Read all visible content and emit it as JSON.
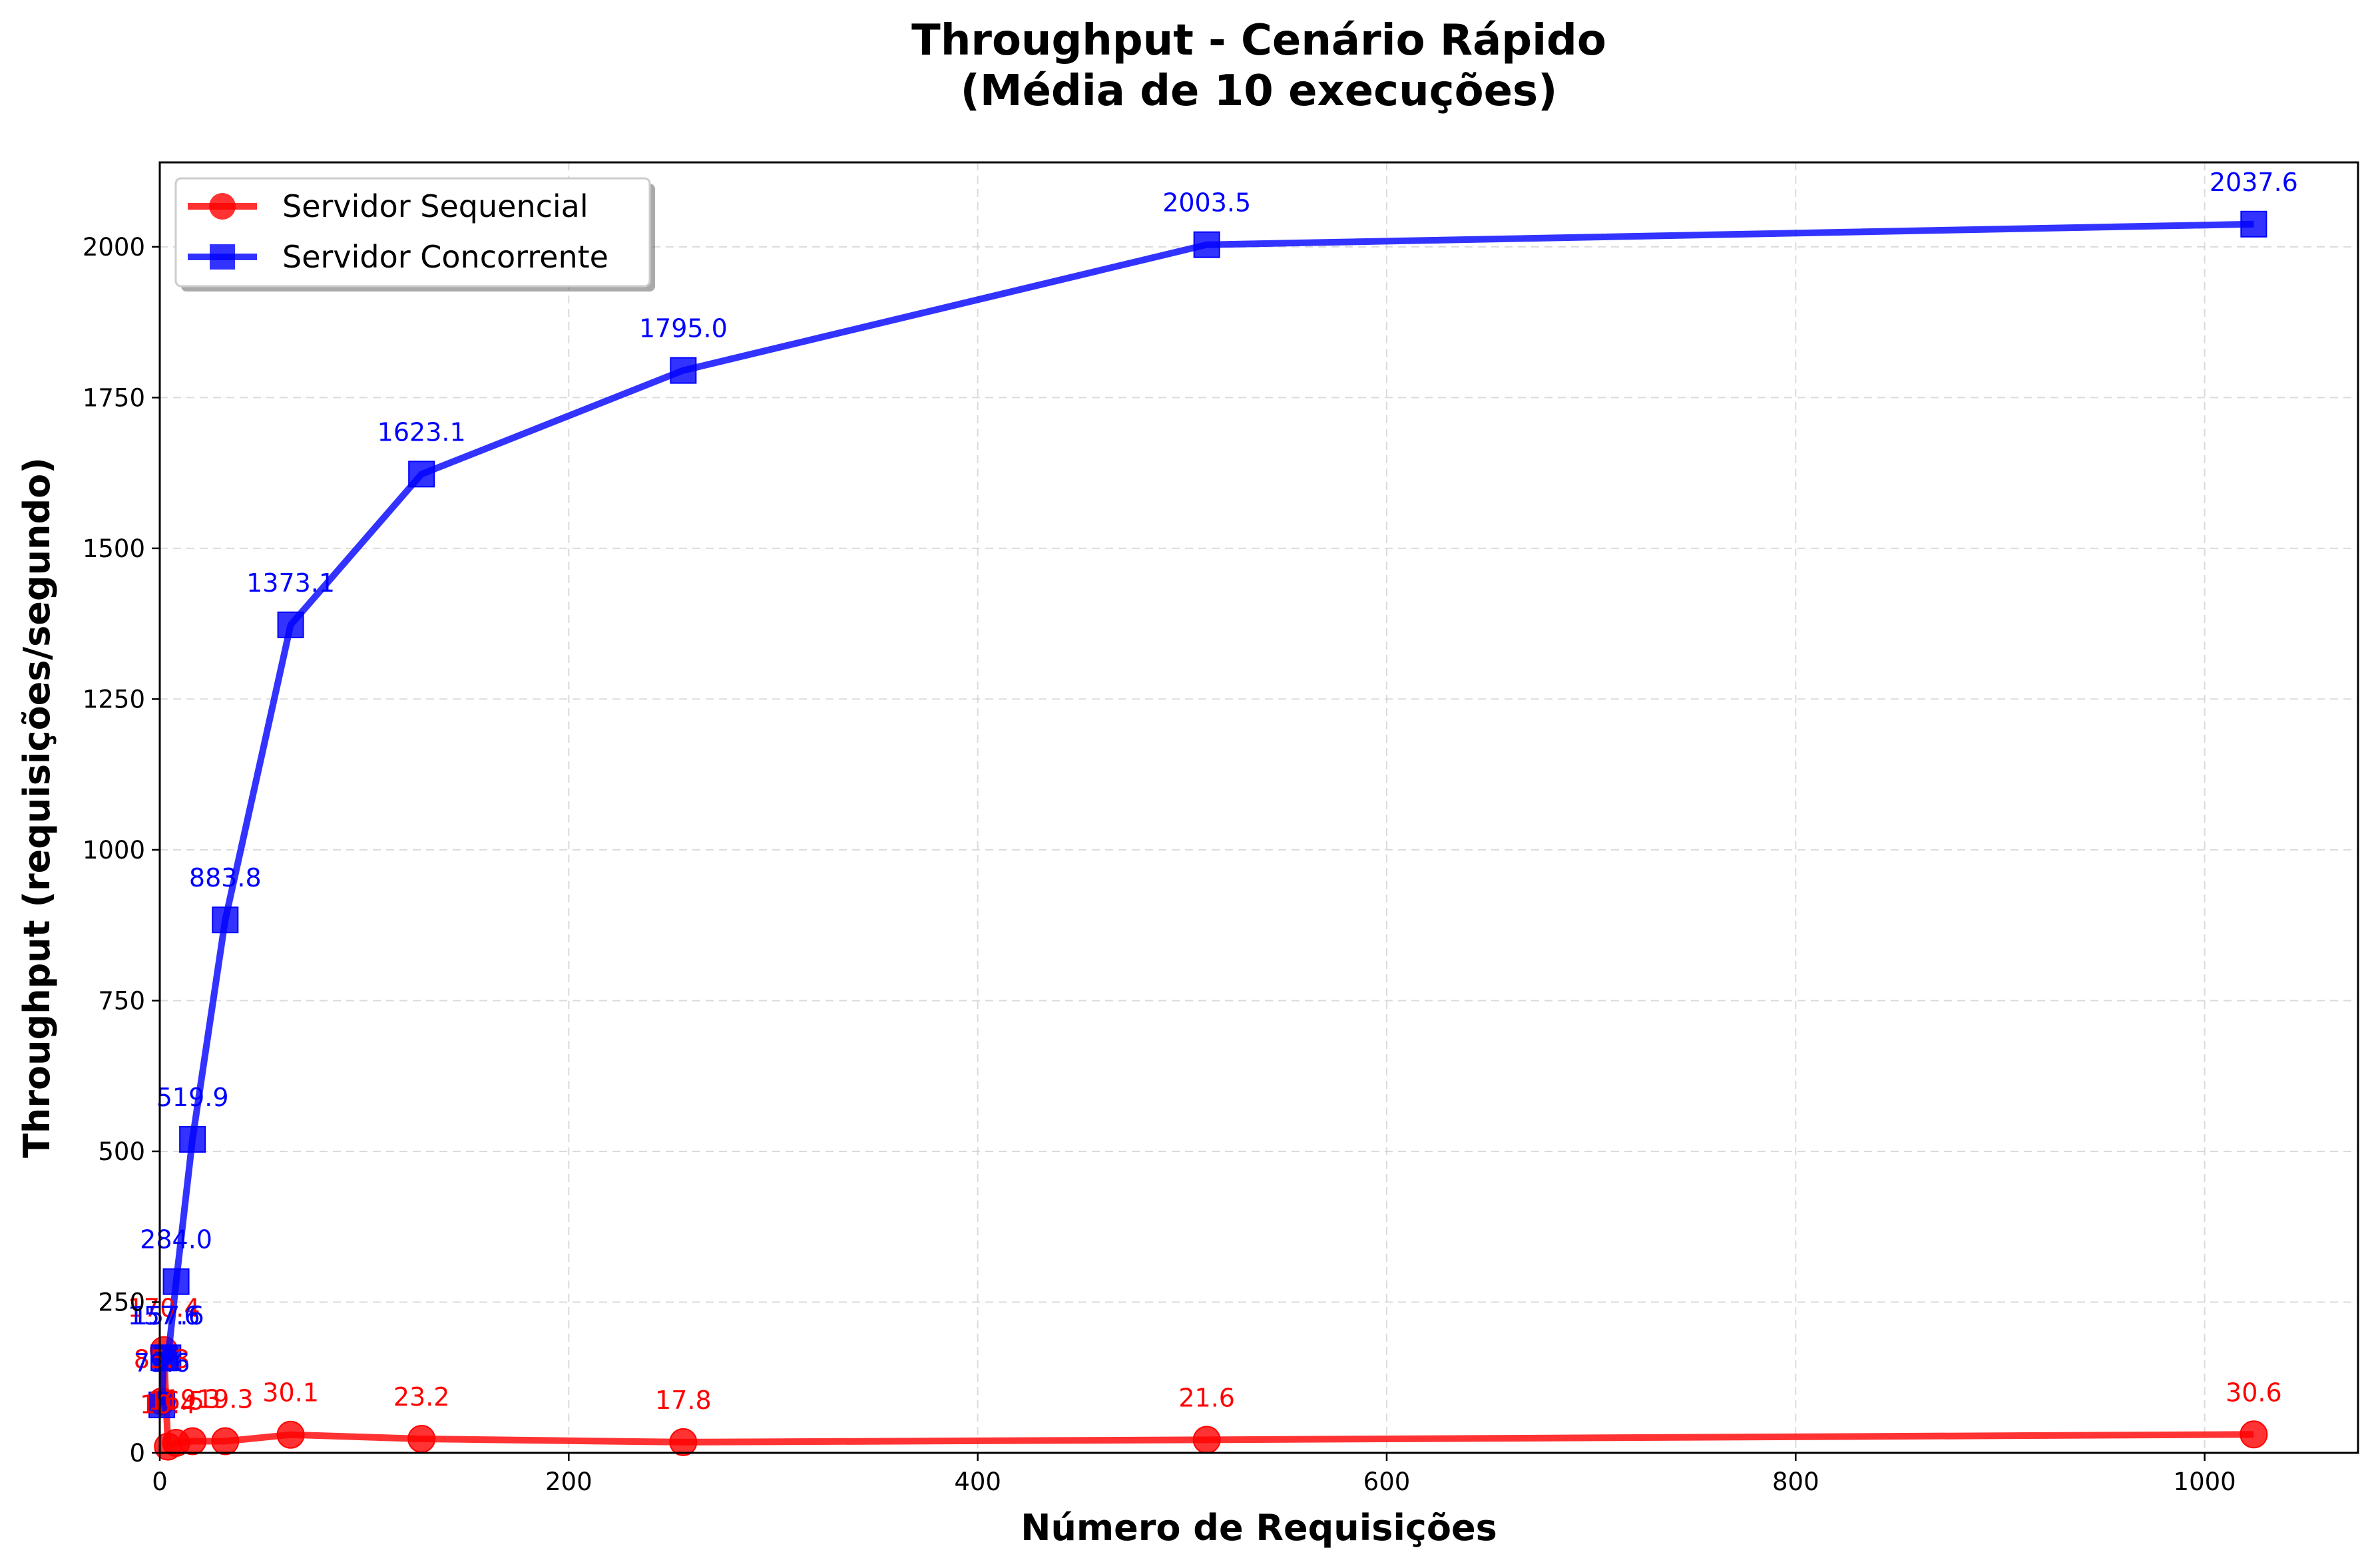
{
  "chart_data": {
    "type": "line",
    "title": "Throughput - Cenário Rápido",
    "subtitle": "(Média de 10 execuções)",
    "xlabel": "Número de Requisições",
    "ylabel": "Throughput (requisições/segundo)",
    "xlim": [
      0,
      1075
    ],
    "ylim": [
      0,
      2140
    ],
    "xticks": [
      0,
      200,
      400,
      600,
      800,
      1000
    ],
    "yticks": [
      0,
      250,
      500,
      750,
      1000,
      1250,
      1500,
      1750,
      2000
    ],
    "grid": true,
    "legend_position": "top-left",
    "series": [
      {
        "name": "Servidor Sequencial",
        "color": "#ff0000",
        "marker": "circle",
        "x": [
          1,
          2,
          4,
          8,
          16,
          32,
          64,
          128,
          256,
          512,
          1024
        ],
        "y": [
          85.3,
          170.4,
          10.4,
          16.5,
          19.3,
          19.3,
          30.1,
          23.2,
          17.8,
          21.6,
          30.6
        ],
        "labels": [
          "85.3",
          "170.4",
          "10.4",
          "16.5",
          "19.3",
          "19.3",
          "30.1",
          "23.2",
          "17.8",
          "21.6",
          "30.6"
        ]
      },
      {
        "name": "Servidor Concorrente",
        "color": "#0000ff",
        "marker": "square",
        "x": [
          1,
          2,
          4,
          8,
          16,
          32,
          64,
          128,
          256,
          512,
          1024
        ],
        "y": [
          79.6,
          157.6,
          157.6,
          284.0,
          519.9,
          883.8,
          1373.1,
          1623.1,
          1795.0,
          2003.5,
          2037.6
        ],
        "labels": [
          "79.6",
          "157.6",
          "157.6",
          "284.0",
          "519.9",
          "883.8",
          "1373.1",
          "1623.1",
          "1795.0",
          "2003.5",
          "2037.6"
        ]
      }
    ]
  }
}
